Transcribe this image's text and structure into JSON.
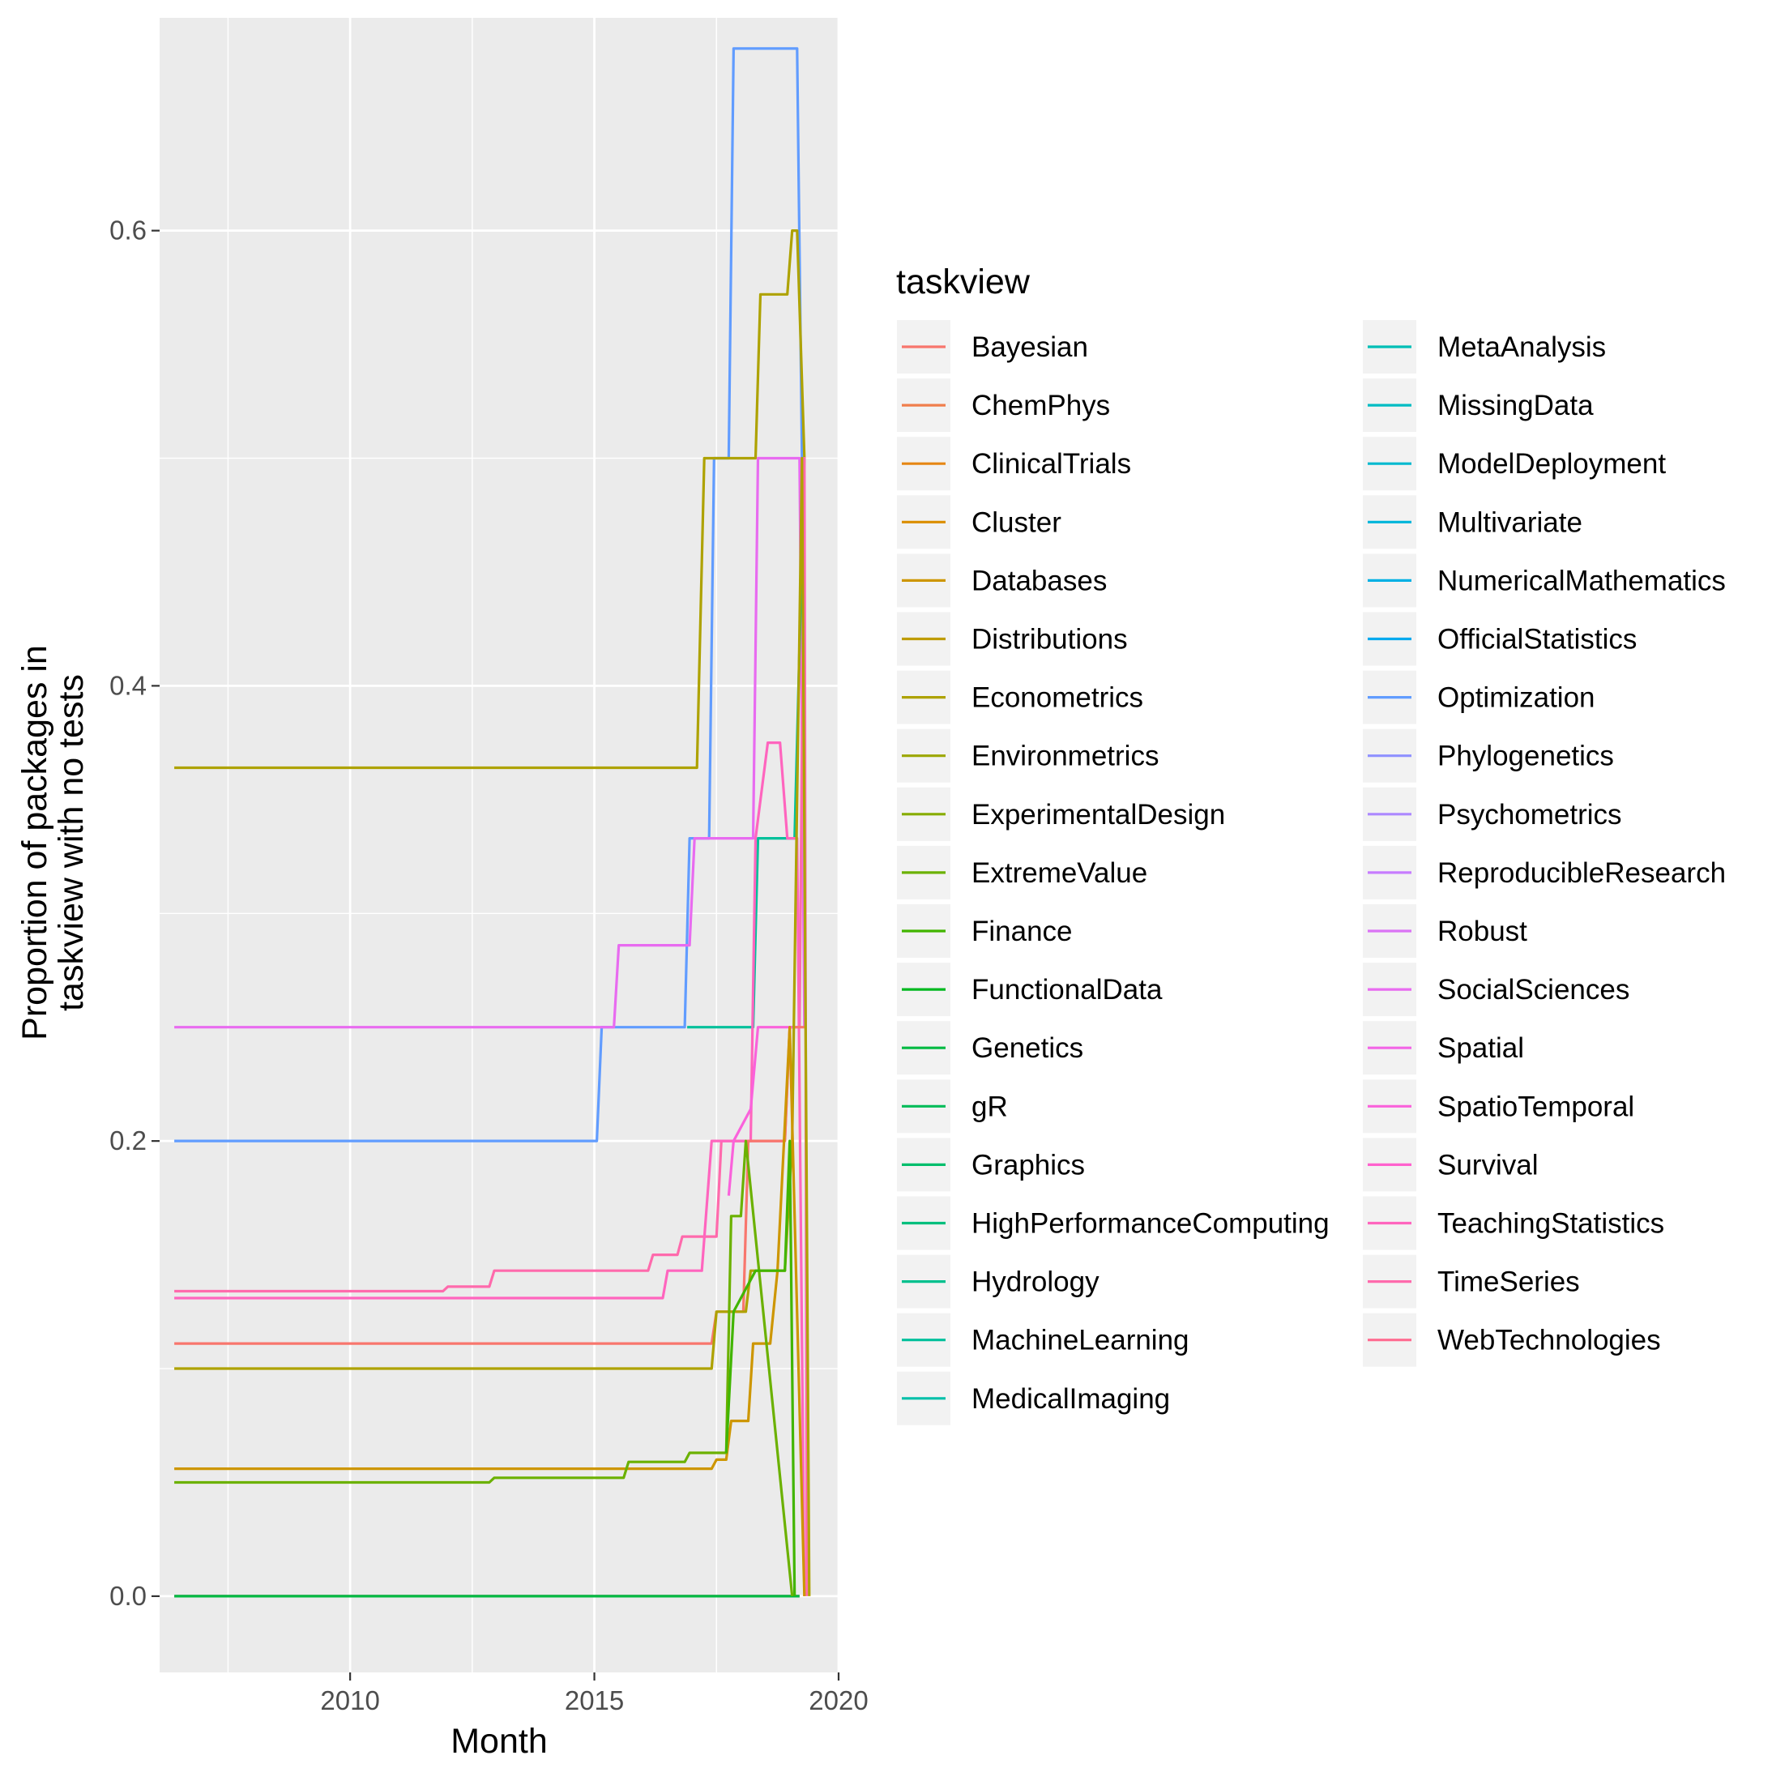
{
  "chart_data": {
    "type": "line",
    "xlabel": "Month",
    "ylabel": [
      "Proportion of packages in",
      "taskview with no tests"
    ],
    "xlim": [
      2006.1,
      2020.0
    ],
    "ylim": [
      -0.0335,
      0.6935
    ],
    "x_ticks": [
      2010,
      2015,
      2020
    ],
    "y_ticks": [
      0.0,
      0.2,
      0.4,
      0.6
    ],
    "y_tick_labels": [
      "0.0",
      "0.2",
      "0.4",
      "0.6"
    ],
    "grid": true,
    "legend": {
      "title": "taskview",
      "placement": "right",
      "columns": 2,
      "entries": [
        {
          "name": "Bayesian",
          "color": "#F8766D"
        },
        {
          "name": "ChemPhys",
          "color": "#F07E4C"
        },
        {
          "name": "ClinicalTrials",
          "color": "#E68613"
        },
        {
          "name": "Cluster",
          "color": "#DB8E00"
        },
        {
          "name": "Databases",
          "color": "#CD9600"
        },
        {
          "name": "Distributions",
          "color": "#BE9C00"
        },
        {
          "name": "Econometrics",
          "color": "#AEA200"
        },
        {
          "name": "Environmetrics",
          "color": "#9CA700"
        },
        {
          "name": "ExperimentalDesign",
          "color": "#87AC00"
        },
        {
          "name": "ExtremeValue",
          "color": "#6BB100"
        },
        {
          "name": "Finance",
          "color": "#41B500"
        },
        {
          "name": "FunctionalData",
          "color": "#00B81F"
        },
        {
          "name": "Genetics",
          "color": "#00BA42"
        },
        {
          "name": "gR",
          "color": "#00BC59"
        },
        {
          "name": "Graphics",
          "color": "#00BE6C"
        },
        {
          "name": "HighPerformanceComputing",
          "color": "#00BF7D"
        },
        {
          "name": "Hydrology",
          "color": "#00C08D"
        },
        {
          "name": "MachineLearning",
          "color": "#00C09B"
        },
        {
          "name": "MedicalImaging",
          "color": "#00BFA9"
        },
        {
          "name": "MetaAnalysis",
          "color": "#00BEB6"
        },
        {
          "name": "MissingData",
          "color": "#00BCC3"
        },
        {
          "name": "ModelDeployment",
          "color": "#00B9CF"
        },
        {
          "name": "Multivariate",
          "color": "#00B5DA"
        },
        {
          "name": "NumericalMathematics",
          "color": "#00B0E4"
        },
        {
          "name": "OfficialStatistics",
          "color": "#00A9EE"
        },
        {
          "name": "Optimization",
          "color": "#619CFF"
        },
        {
          "name": "Phylogenetics",
          "color": "#8F91FF"
        },
        {
          "name": "Psychometrics",
          "color": "#AC88FF"
        },
        {
          "name": "ReproducibleResearch",
          "color": "#C77CFF"
        },
        {
          "name": "Robust",
          "color": "#DA73F5"
        },
        {
          "name": "SocialSciences",
          "color": "#E86BF0"
        },
        {
          "name": "Spatial",
          "color": "#F365E6"
        },
        {
          "name": "SpatioTemporal",
          "color": "#FA62DB"
        },
        {
          "name": "Survival",
          "color": "#FF62CE"
        },
        {
          "name": "TeachingStatistics",
          "color": "#FF65BE"
        },
        {
          "name": "TimeSeries",
          "color": "#FF6AAC"
        },
        {
          "name": "WebTechnologies",
          "color": "#FF6C91"
        }
      ]
    },
    "series": [
      {
        "legend_index": 36,
        "points": [
          [
            2006.4,
            0.0
          ],
          [
            2019.2,
            0.0
          ]
        ]
      },
      {
        "legend_index": 12,
        "points": [
          [
            2006.4,
            0.0
          ],
          [
            2019.2,
            0.0
          ]
        ]
      },
      {
        "legend_index": 25,
        "points": [
          [
            2006.4,
            0.2
          ],
          [
            2015.05,
            0.2
          ],
          [
            2015.15,
            0.25
          ],
          [
            2016.85,
            0.25
          ],
          [
            2016.95,
            0.333
          ],
          [
            2017.35,
            0.333
          ],
          [
            2017.45,
            0.5
          ],
          [
            2017.75,
            0.5
          ],
          [
            2017.85,
            0.68
          ],
          [
            2019.15,
            0.68
          ],
          [
            2019.25,
            0.5
          ]
        ]
      },
      {
        "legend_index": 6,
        "points": [
          [
            2006.4,
            0.364
          ],
          [
            2017.1,
            0.364
          ],
          [
            2017.25,
            0.5
          ],
          [
            2018.3,
            0.5
          ],
          [
            2018.4,
            0.572
          ],
          [
            2018.95,
            0.572
          ],
          [
            2019.05,
            0.6
          ],
          [
            2019.15,
            0.6
          ],
          [
            2019.3,
            0.5
          ]
        ]
      },
      {
        "legend_index": 30,
        "points": [
          [
            2006.4,
            0.25
          ],
          [
            2015.4,
            0.25
          ],
          [
            2015.5,
            0.286
          ],
          [
            2016.95,
            0.286
          ],
          [
            2017.05,
            0.333
          ],
          [
            2018.25,
            0.333
          ],
          [
            2018.35,
            0.5
          ],
          [
            2019.2,
            0.5
          ],
          [
            2019.3,
            0.25
          ]
        ]
      },
      {
        "legend_index": 17,
        "points": [
          [
            2016.9,
            0.25
          ],
          [
            2018.25,
            0.25
          ],
          [
            2018.35,
            0.333
          ],
          [
            2019.1,
            0.333
          ],
          [
            2019.3,
            0.5
          ]
        ]
      },
      {
        "legend_index": 35,
        "points": [
          [
            2006.4,
            0.134
          ],
          [
            2011.9,
            0.134
          ],
          [
            2012.0,
            0.136
          ],
          [
            2012.85,
            0.136
          ],
          [
            2012.95,
            0.143
          ],
          [
            2016.1,
            0.143
          ],
          [
            2016.2,
            0.15
          ],
          [
            2016.7,
            0.15
          ],
          [
            2016.8,
            0.158
          ],
          [
            2017.5,
            0.158
          ],
          [
            2017.6,
            0.2
          ],
          [
            2018.9,
            0.2
          ],
          [
            2019.0,
            0.25
          ],
          [
            2019.2,
            0.25
          ],
          [
            2019.3,
            0.5
          ],
          [
            2019.35,
            0.0
          ]
        ]
      },
      {
        "legend_index": 34,
        "points": [
          [
            2006.4,
            0.131
          ],
          [
            2016.4,
            0.131
          ],
          [
            2016.5,
            0.143
          ],
          [
            2017.2,
            0.143
          ],
          [
            2017.4,
            0.2
          ],
          [
            2018.2,
            0.2
          ],
          [
            2018.3,
            0.333
          ],
          [
            2018.55,
            0.375
          ],
          [
            2018.8,
            0.375
          ],
          [
            2018.95,
            0.333
          ],
          [
            2019.15,
            0.333
          ],
          [
            2019.3,
            0.0
          ]
        ]
      },
      {
        "legend_index": 0,
        "points": [
          [
            2006.4,
            0.111
          ],
          [
            2017.4,
            0.111
          ],
          [
            2017.5,
            0.125
          ],
          [
            2018.05,
            0.125
          ],
          [
            2018.15,
            0.2
          ],
          [
            2018.9,
            0.2
          ],
          [
            2019.0,
            0.25
          ],
          [
            2019.3,
            0.25
          ]
        ]
      },
      {
        "legend_index": 32,
        "points": [
          [
            2017.75,
            0.176
          ],
          [
            2017.85,
            0.2
          ],
          [
            2018.2,
            0.214
          ],
          [
            2018.35,
            0.25
          ],
          [
            2019.1,
            0.25
          ]
        ]
      },
      {
        "legend_index": 6,
        "points": [
          [
            2006.4,
            0.1
          ],
          [
            2017.4,
            0.1
          ],
          [
            2017.5,
            0.125
          ],
          [
            2018.1,
            0.125
          ],
          [
            2018.2,
            0.143
          ],
          [
            2018.9,
            0.143
          ],
          [
            2019.05,
            0.2
          ],
          [
            2019.25,
            0.5
          ],
          [
            2019.4,
            0.0
          ]
        ]
      },
      {
        "legend_index": 4,
        "points": [
          [
            2006.4,
            0.056
          ],
          [
            2017.4,
            0.056
          ],
          [
            2017.5,
            0.06
          ],
          [
            2017.7,
            0.06
          ],
          [
            2017.8,
            0.077
          ],
          [
            2018.15,
            0.077
          ],
          [
            2018.25,
            0.111
          ],
          [
            2018.6,
            0.111
          ],
          [
            2018.75,
            0.143
          ],
          [
            2019.0,
            0.25
          ],
          [
            2019.3,
            0.0
          ]
        ]
      },
      {
        "legend_index": 9,
        "points": [
          [
            2006.4,
            0.05
          ],
          [
            2012.85,
            0.05
          ],
          [
            2012.95,
            0.052
          ],
          [
            2015.6,
            0.052
          ],
          [
            2015.7,
            0.059
          ],
          [
            2016.85,
            0.059
          ],
          [
            2016.95,
            0.063
          ],
          [
            2017.7,
            0.063
          ],
          [
            2017.8,
            0.167
          ],
          [
            2018.0,
            0.167
          ],
          [
            2018.1,
            0.2
          ],
          [
            2019.05,
            0.0
          ]
        ]
      },
      {
        "legend_index": 10,
        "points": [
          [
            2017.7,
            0.063
          ],
          [
            2017.85,
            0.125
          ],
          [
            2018.3,
            0.143
          ],
          [
            2018.9,
            0.143
          ],
          [
            2019.0,
            0.2
          ],
          [
            2019.1,
            0.0
          ]
        ]
      }
    ]
  }
}
